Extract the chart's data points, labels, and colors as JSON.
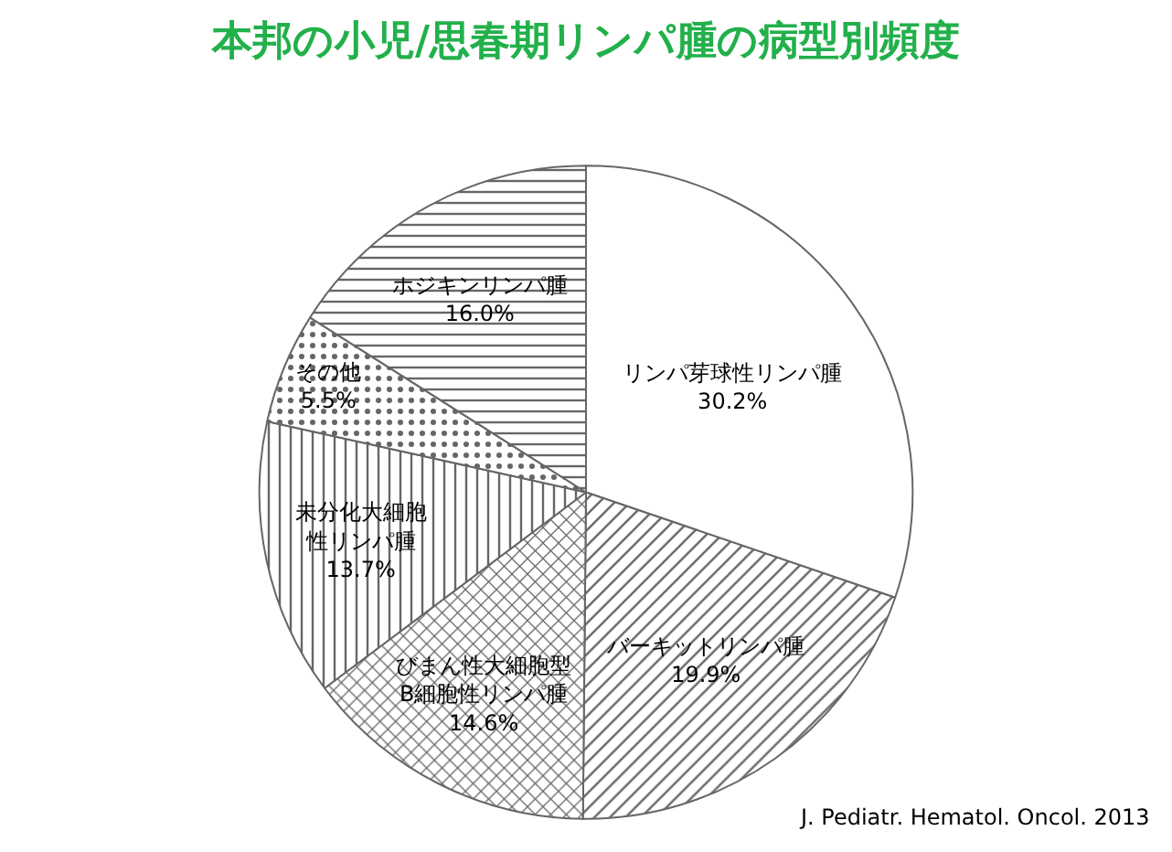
{
  "chart_data": {
    "type": "pie",
    "title": "本邦の小児/思春期リンパ腫の病型別頻度",
    "categories": [
      "リンパ芽球性リンパ腫",
      "バーキットリンパ腫",
      "びまん性大細胞型B細胞性リンパ腫",
      "未分化大細胞性リンパ腫",
      "その他",
      "ホジキンリンパ腫"
    ],
    "values": [
      30.2,
      19.9,
      14.6,
      13.7,
      5.5,
      16.0
    ],
    "value_labels": [
      "30.2%",
      "19.9%",
      "14.6%",
      "13.7%",
      "5.5%",
      "16.0%"
    ],
    "colors": [
      "#ffffff",
      "#666666",
      "#666666",
      "#666666",
      "#666666",
      "#666666"
    ],
    "annotations": [
      "J. Pediatr. Hematol. Oncol. 2013"
    ],
    "legend": false
  }
}
